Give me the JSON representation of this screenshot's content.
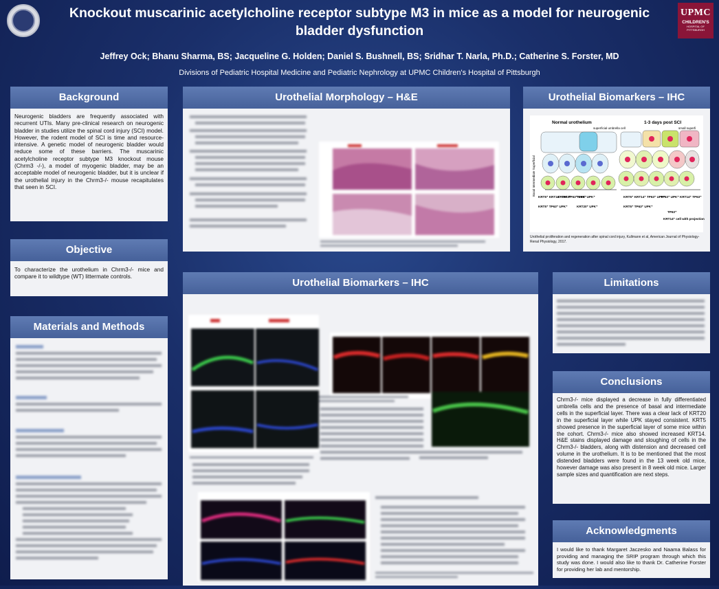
{
  "poster": {
    "title": "Knockout muscarinic acetylcholine receptor subtype M3 in mice as a model for neurogenic bladder dysfunction",
    "authors": "Jeffrey Ock; Bhanu Sharma, BS; Jacqueline G. Holden; Daniel S. Bushnell, BS; Sridhar T. Narla, Ph.D.; Catherine S. Forster, MD",
    "affiliation": "Divisions of Pediatric Hospital Medicine and Pediatric Nephrology at UPMC Children's Hospital of Pittsburgh"
  },
  "logos": {
    "left": "University of Pittsburgh seal",
    "right_line1": "UPMC",
    "right_line2": "CHILDREN'S",
    "right_line3": "HOSPITAL OF PITTSBURGH"
  },
  "background": {
    "header": "Background",
    "text": "Neurogenic bladders are frequently associated with recurrent UTIs. Many pre-clinical research on neurogenic bladder in studies utilize the spinal cord injury (SCI) model. However, the rodent model of SCI is time and resource-intensive. A genetic model of neurogenic bladder would reduce some of these barriers. The muscarinic acetylcholine receptor subtype M3 knockout mouse (Chrm3 -/-), a model of myogenic bladder, may be an acceptable model of neurogenic bladder, but it is unclear if the urothelial injury in the Chrm3-/- mouse recapitulates that seen in SCI."
  },
  "objective": {
    "header": "Objective",
    "text": "To characterize the urothelium in Chrm3-/- mice and compare it to wildtype (WT) littermate controls."
  },
  "methods": {
    "header": "Materials and Methods"
  },
  "morphology": {
    "header": "Urothelial Morphology – H&E"
  },
  "biomarkers_top": {
    "header": "Urothelial Biomarkers – IHC",
    "diagram_label_left": "Normal urothelium",
    "diagram_label_right": "1-3 days post SCI",
    "label_umbrella": "superficial umbrella cell",
    "label_small": "small superfi",
    "layers": "Basal  Intermediate  Superficial",
    "markers_left": [
      "KRT5⁺ KRT14⁻ TP63⁺",
      "KRT5⁺ TP63⁺ UPK⁻",
      "TP63⁺ UPK⁺",
      "KRT5⁺ TP63⁺ UPK⁺",
      "KRT20⁺ UPK⁺"
    ],
    "markers_right": [
      "KRT5⁺ KRT14⁺ TP63⁺ UPK⁺",
      "KRT5⁺ TP63⁺ UPK⁺",
      "TP63⁺ UPK⁺",
      "KRT14⁺ TP63⁺"
    ],
    "marker_tp63": "TP63⁺",
    "marker_projection": "KRT14⁺ cell with projection",
    "caption": "Urothelial proliferation and regeneration after spinal cord injury, Kullmann et al, American Journal of Physiology-Renal Physiology, 2017."
  },
  "biomarkers_main": {
    "header": "Urothelial Biomarkers – IHC"
  },
  "limitations": {
    "header": "Limitations"
  },
  "conclusions": {
    "header": "Conclusions",
    "text": "Chrm3-/- mice displayed a decrease in fully differentiated umbrella cells and the presence of basal and intermediate cells in the superficial layer. There was a clear lack of KRT20 in the superficial layer while UPK stayed consistent. KRT5 showed presence in the superficial layer of some mice within the cohort. Chrm3-/- mice also showed increased KRT14. H&E stains displayed damage and sloughing of cells in the Chrm3-/- bladders, along with distension and decreased cell volume in the urothelium. It is to be mentioned that the most distended bladders were found in the 13 week old mice, however damage was also present in 8 week old mice. Larger sample sizes and quantification are next steps."
  },
  "acknowledgments": {
    "header": "Acknowledgments",
    "text": "I would like to thank Margaret Jaczesko and Naama Balass for providing and managing the SRIP program through which this study was done. I would also like to thank Dr. Catherine Forster for providing her lab and mentorship."
  },
  "colors": {
    "header_blue": "#5a75ad",
    "panel_bg": "#f1f2f5",
    "upmc_red": "#8a1538",
    "he_pink": "#c57aa5"
  }
}
